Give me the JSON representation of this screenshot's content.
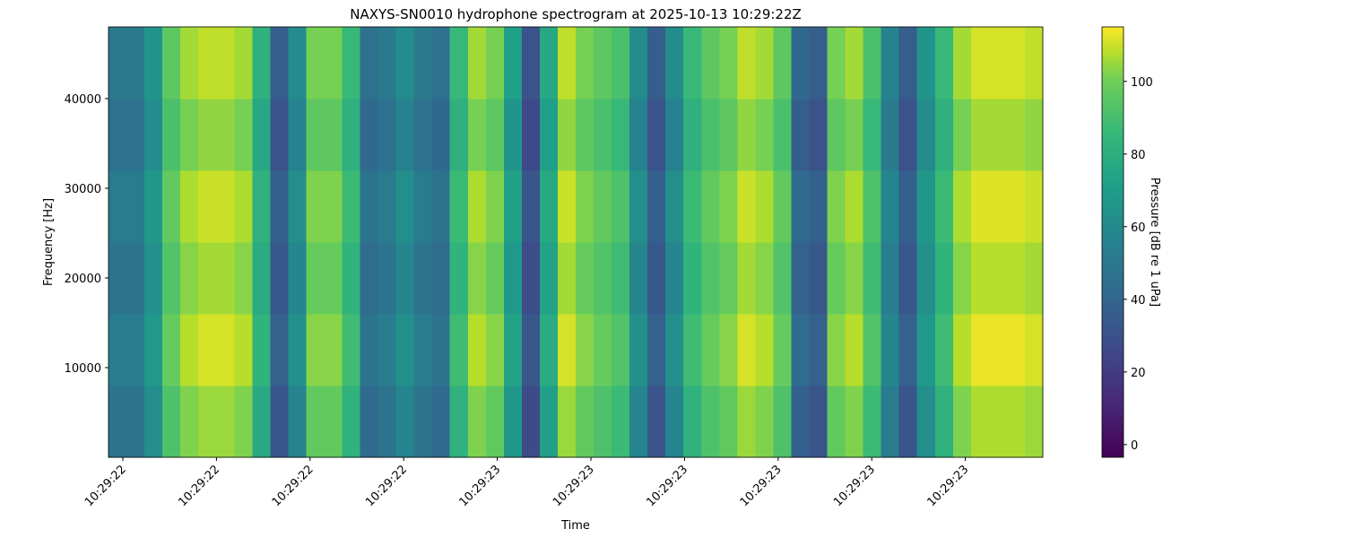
{
  "chart_data": {
    "type": "heatmap",
    "title": "NAXYS-SN0010 hydrophone spectrogram at 2025-10-13 10:29:22Z",
    "xlabel": "Time",
    "ylabel": "Frequency [Hz]",
    "colorbar_label": "Pressure [dB re 1 uPa]",
    "colormap": "viridis",
    "xtick_labels": [
      "10:29:22",
      "10:29:22",
      "10:29:22",
      "10:29:22",
      "10:29:23",
      "10:29:23",
      "10:29:23",
      "10:29:23",
      "10:29:23",
      "10:29:23"
    ],
    "ylim": [
      0,
      48000
    ],
    "yticks": [
      10000,
      20000,
      30000,
      40000
    ],
    "ybins": [
      0,
      8000,
      16000,
      24000,
      32000,
      40000,
      48000
    ],
    "clim": [
      -3.5,
      115
    ],
    "cticks": [
      0,
      20,
      40,
      60,
      80,
      100
    ],
    "z": [
      [
        47,
        47,
        62,
        92,
        102,
        105,
        105,
        102,
        77,
        32,
        57,
        97,
        97,
        82,
        42,
        47,
        57,
        47,
        42,
        82,
        102,
        97,
        67,
        27,
        72,
        105,
        97,
        92,
        87,
        57,
        32,
        57,
        82,
        92,
        97,
        105,
        102,
        92,
        37,
        32,
        97,
        102,
        87,
        52,
        32,
        62,
        82,
        102,
        107,
        107,
        107,
        105
      ],
      [
        53,
        53,
        68,
        98,
        108,
        111,
        111,
        108,
        83,
        38,
        63,
        103,
        103,
        88,
        48,
        53,
        63,
        53,
        48,
        88,
        108,
        103,
        73,
        33,
        78,
        111,
        103,
        98,
        93,
        63,
        38,
        63,
        88,
        98,
        103,
        111,
        108,
        98,
        43,
        38,
        103,
        108,
        93,
        58,
        38,
        68,
        88,
        108,
        113,
        113,
        113,
        111
      ],
      [
        48,
        48,
        63,
        93,
        103,
        106,
        106,
        103,
        78,
        33,
        58,
        98,
        98,
        83,
        43,
        48,
        58,
        48,
        43,
        83,
        103,
        98,
        68,
        28,
        73,
        106,
        98,
        93,
        88,
        58,
        33,
        58,
        83,
        93,
        98,
        106,
        103,
        93,
        38,
        33,
        98,
        103,
        88,
        53,
        33,
        63,
        83,
        103,
        108,
        108,
        108,
        106
      ],
      [
        52,
        52,
        67,
        97,
        107,
        110,
        110,
        107,
        82,
        37,
        62,
        102,
        102,
        87,
        47,
        52,
        62,
        52,
        47,
        87,
        107,
        102,
        72,
        32,
        77,
        110,
        102,
        97,
        92,
        62,
        37,
        62,
        87,
        97,
        102,
        110,
        107,
        97,
        42,
        37,
        102,
        107,
        92,
        57,
        37,
        67,
        87,
        107,
        112,
        112,
        112,
        110
      ],
      [
        46,
        46,
        61,
        91,
        101,
        104,
        104,
        101,
        76,
        31,
        56,
        96,
        96,
        81,
        41,
        46,
        56,
        46,
        41,
        81,
        101,
        96,
        66,
        26,
        71,
        104,
        96,
        91,
        86,
        56,
        31,
        56,
        81,
        91,
        96,
        104,
        101,
        91,
        36,
        31,
        96,
        101,
        86,
        51,
        31,
        61,
        81,
        101,
        106,
        106,
        106,
        104
      ],
      [
        51,
        51,
        66,
        96,
        106,
        109,
        109,
        106,
        81,
        36,
        61,
        101,
        101,
        86,
        46,
        51,
        61,
        51,
        46,
        86,
        106,
        101,
        71,
        31,
        76,
        109,
        101,
        96,
        91,
        61,
        36,
        61,
        86,
        96,
        101,
        109,
        106,
        96,
        41,
        36,
        101,
        106,
        91,
        56,
        36,
        66,
        86,
        106,
        111,
        111,
        111,
        109
      ]
    ]
  }
}
